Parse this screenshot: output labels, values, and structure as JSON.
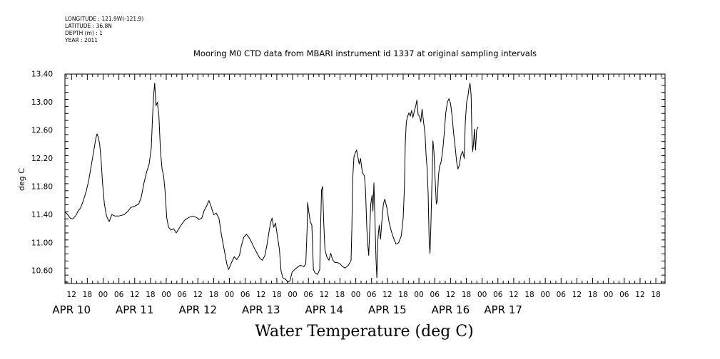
{
  "header": {
    "meta_lines": [
      "LONGITUDE : 121.9W(-121.9)",
      "LATITUDE : 36.8N",
      "DEPTH (m) : 1",
      "YEAR : 2011"
    ],
    "title": "Mooring M0 CTD data from MBARI instrument id 1337 at original sampling intervals"
  },
  "chart_data": {
    "type": "line",
    "title": "Mooring M0 CTD data from MBARI instrument id 1337 at original sampling intervals",
    "xlabel": "Water Temperature (deg C)",
    "ylabel": "deg C",
    "x_unit": "hours from APR 10 00:00, 2011",
    "xlim": [
      9.5,
      237.5
    ],
    "ylim": [
      10.42,
      13.4
    ],
    "y_ticks": [
      10.6,
      11.0,
      11.4,
      11.8,
      12.2,
      12.6,
      13.0,
      13.4
    ],
    "y_tick_labels": [
      "10.60",
      "11.00",
      "11.40",
      "11.80",
      "12.20",
      "12.60",
      "13.00",
      "13.40"
    ],
    "hour_ticks": [
      12,
      18,
      24,
      30,
      36,
      42,
      48,
      54,
      60,
      66,
      72,
      78,
      84,
      90,
      96,
      102,
      108,
      114,
      120,
      126,
      132,
      138,
      144,
      150,
      156,
      162,
      168,
      174,
      180,
      186,
      192,
      198,
      204,
      210,
      216,
      222,
      228,
      234
    ],
    "hour_tick_labels": [
      "12",
      "18",
      "00",
      "06",
      "12",
      "18",
      "00",
      "06",
      "12",
      "18",
      "00",
      "06",
      "12",
      "18",
      "00",
      "06",
      "12",
      "18",
      "00",
      "06",
      "12",
      "18",
      "00",
      "06",
      "12",
      "18",
      "00",
      "06",
      "12",
      "18",
      "00",
      "06",
      "12",
      "18",
      "00",
      "06",
      "12",
      "18"
    ],
    "day_labels": [
      {
        "x": 12,
        "label": "APR 10"
      },
      {
        "x": 36,
        "label": "APR 11"
      },
      {
        "x": 60,
        "label": "APR 12"
      },
      {
        "x": 84,
        "label": "APR 13"
      },
      {
        "x": 108,
        "label": "APR 14"
      },
      {
        "x": 132,
        "label": "APR 15"
      },
      {
        "x": 156,
        "label": "APR 16"
      },
      {
        "x": 176,
        "label": "APR 17"
      }
    ],
    "series": [
      {
        "points": [
          [
            9.6,
            11.44
          ],
          [
            10.5,
            11.4
          ],
          [
            11.5,
            11.35
          ],
          [
            12.5,
            11.34
          ],
          [
            13.5,
            11.38
          ],
          [
            14.5,
            11.45
          ],
          [
            15.5,
            11.5
          ],
          [
            16.5,
            11.6
          ],
          [
            17.5,
            11.72
          ],
          [
            18.5,
            11.88
          ],
          [
            19.5,
            12.1
          ],
          [
            20.5,
            12.32
          ],
          [
            21.2,
            12.48
          ],
          [
            21.7,
            12.55
          ],
          [
            22.2,
            12.5
          ],
          [
            22.7,
            12.4
          ],
          [
            23.2,
            12.2
          ],
          [
            23.8,
            11.85
          ],
          [
            24.5,
            11.55
          ],
          [
            25.3,
            11.38
          ],
          [
            26.3,
            11.3
          ],
          [
            27.3,
            11.4
          ],
          [
            28.5,
            11.38
          ],
          [
            30,
            11.38
          ],
          [
            32,
            11.4
          ],
          [
            33.5,
            11.45
          ],
          [
            34.5,
            11.5
          ],
          [
            36,
            11.52
          ],
          [
            37.5,
            11.55
          ],
          [
            38.5,
            11.65
          ],
          [
            39.5,
            11.85
          ],
          [
            40.5,
            12.0
          ],
          [
            41.5,
            12.12
          ],
          [
            42.3,
            12.35
          ],
          [
            42.8,
            12.8
          ],
          [
            43.2,
            13.1
          ],
          [
            43.6,
            13.27
          ],
          [
            44.1,
            12.95
          ],
          [
            44.6,
            13.0
          ],
          [
            45.2,
            12.8
          ],
          [
            45.8,
            12.3
          ],
          [
            46.4,
            12.05
          ],
          [
            47,
            11.95
          ],
          [
            47.5,
            11.75
          ],
          [
            48.2,
            11.35
          ],
          [
            48.9,
            11.22
          ],
          [
            49.8,
            11.18
          ],
          [
            50.8,
            11.2
          ],
          [
            51.8,
            11.14
          ],
          [
            52.8,
            11.2
          ],
          [
            53.8,
            11.26
          ],
          [
            55,
            11.32
          ],
          [
            56.5,
            11.36
          ],
          [
            58,
            11.38
          ],
          [
            59.5,
            11.36
          ],
          [
            60.5,
            11.33
          ],
          [
            61.5,
            11.35
          ],
          [
            62.3,
            11.45
          ],
          [
            63.3,
            11.52
          ],
          [
            64.2,
            11.6
          ],
          [
            65,
            11.52
          ],
          [
            66,
            11.4
          ],
          [
            67,
            11.42
          ],
          [
            68,
            11.35
          ],
          [
            69,
            11.1
          ],
          [
            70,
            10.9
          ],
          [
            71,
            10.7
          ],
          [
            71.7,
            10.62
          ],
          [
            72.8,
            10.72
          ],
          [
            73.8,
            10.8
          ],
          [
            74.8,
            10.76
          ],
          [
            75.8,
            10.82
          ],
          [
            76.5,
            10.95
          ],
          [
            77.5,
            11.08
          ],
          [
            78.5,
            11.12
          ],
          [
            79.5,
            11.07
          ],
          [
            80.5,
            11.0
          ],
          [
            81.5,
            10.92
          ],
          [
            82.5,
            10.85
          ],
          [
            83.5,
            10.78
          ],
          [
            84.5,
            10.75
          ],
          [
            85.5,
            10.82
          ],
          [
            86.3,
            10.98
          ],
          [
            87,
            11.15
          ],
          [
            87.6,
            11.28
          ],
          [
            88.2,
            11.35
          ],
          [
            88.8,
            11.22
          ],
          [
            89.5,
            11.28
          ],
          [
            90.3,
            11.08
          ],
          [
            91,
            10.9
          ],
          [
            91.6,
            10.6
          ],
          [
            92.3,
            10.5
          ],
          [
            93.3,
            10.48
          ],
          [
            94.3,
            10.44
          ],
          [
            95,
            10.46
          ],
          [
            95.8,
            10.58
          ],
          [
            96.8,
            10.62
          ],
          [
            97.8,
            10.65
          ],
          [
            99,
            10.68
          ],
          [
            100.3,
            10.66
          ],
          [
            101,
            10.7
          ],
          [
            101.5,
            11.2
          ],
          [
            101.7,
            11.57
          ],
          [
            102.1,
            11.45
          ],
          [
            102.7,
            11.3
          ],
          [
            103.3,
            11.25
          ],
          [
            103.6,
            10.95
          ],
          [
            103.9,
            10.62
          ],
          [
            104.5,
            10.57
          ],
          [
            105.5,
            10.55
          ],
          [
            106.3,
            10.62
          ],
          [
            106.6,
            11.2
          ],
          [
            107,
            11.75
          ],
          [
            107.4,
            11.8
          ],
          [
            107.8,
            11.3
          ],
          [
            108.3,
            10.9
          ],
          [
            109,
            10.8
          ],
          [
            109.8,
            10.75
          ],
          [
            110.5,
            10.85
          ],
          [
            111.2,
            10.76
          ],
          [
            112,
            10.72
          ],
          [
            113,
            10.72
          ],
          [
            114,
            10.7
          ],
          [
            115,
            10.66
          ],
          [
            116,
            10.64
          ],
          [
            117.2,
            10.68
          ],
          [
            118.2,
            10.75
          ],
          [
            118.5,
            11.2
          ],
          [
            118.8,
            11.9
          ],
          [
            119.3,
            12.22
          ],
          [
            119.8,
            12.28
          ],
          [
            120.3,
            12.32
          ],
          [
            120.8,
            12.22
          ],
          [
            121.3,
            12.12
          ],
          [
            121.8,
            12.2
          ],
          [
            122.5,
            12.0
          ],
          [
            123.3,
            11.95
          ],
          [
            123.7,
            11.75
          ],
          [
            124.2,
            11.2
          ],
          [
            124.6,
            10.95
          ],
          [
            124.9,
            10.82
          ],
          [
            125.2,
            11.1
          ],
          [
            125.7,
            11.55
          ],
          [
            126.2,
            11.68
          ],
          [
            126.5,
            11.45
          ],
          [
            126.9,
            11.85
          ],
          [
            127.3,
            11.3
          ],
          [
            127.7,
            10.75
          ],
          [
            128,
            10.5
          ],
          [
            128.4,
            11.05
          ],
          [
            128.9,
            11.25
          ],
          [
            129.4,
            11.05
          ],
          [
            129.9,
            11.3
          ],
          [
            130.5,
            11.55
          ],
          [
            131,
            11.62
          ],
          [
            131.8,
            11.5
          ],
          [
            132.6,
            11.3
          ],
          [
            133.6,
            11.15
          ],
          [
            134.5,
            11.05
          ],
          [
            135.3,
            10.98
          ],
          [
            136.3,
            11.0
          ],
          [
            137.3,
            11.1
          ],
          [
            138,
            11.35
          ],
          [
            138.5,
            11.8
          ],
          [
            138.8,
            12.4
          ],
          [
            139.2,
            12.72
          ],
          [
            139.7,
            12.8
          ],
          [
            140.2,
            12.85
          ],
          [
            140.7,
            12.8
          ],
          [
            141.2,
            12.88
          ],
          [
            141.7,
            12.78
          ],
          [
            142.3,
            12.88
          ],
          [
            142.8,
            12.95
          ],
          [
            143.2,
            13.03
          ],
          [
            143.7,
            12.82
          ],
          [
            144.2,
            12.8
          ],
          [
            144.7,
            12.72
          ],
          [
            145.2,
            12.9
          ],
          [
            145.8,
            12.7
          ],
          [
            146.3,
            12.55
          ],
          [
            146.7,
            12.25
          ],
          [
            147.1,
            12.05
          ],
          [
            147.5,
            11.7
          ],
          [
            147.9,
            11.0
          ],
          [
            148.2,
            10.85
          ],
          [
            148.5,
            11.2
          ],
          [
            148.9,
            11.8
          ],
          [
            149.3,
            12.45
          ],
          [
            149.7,
            12.3
          ],
          [
            150.2,
            11.85
          ],
          [
            150.6,
            11.55
          ],
          [
            151,
            11.6
          ],
          [
            151.4,
            11.95
          ],
          [
            151.8,
            12.08
          ],
          [
            152.4,
            12.15
          ],
          [
            153,
            12.3
          ],
          [
            153.6,
            12.55
          ],
          [
            154.2,
            12.85
          ],
          [
            154.8,
            13.0
          ],
          [
            155.4,
            13.05
          ],
          [
            156,
            12.98
          ],
          [
            156.6,
            12.8
          ],
          [
            157.2,
            12.55
          ],
          [
            157.8,
            12.35
          ],
          [
            158.3,
            12.15
          ],
          [
            158.8,
            12.05
          ],
          [
            159.3,
            12.1
          ],
          [
            160,
            12.25
          ],
          [
            160.6,
            12.3
          ],
          [
            161.2,
            12.2
          ],
          [
            161.6,
            12.7
          ],
          [
            162.1,
            13.0
          ],
          [
            162.6,
            13.08
          ],
          [
            163,
            13.2
          ],
          [
            163.4,
            13.27
          ],
          [
            163.8,
            13.1
          ],
          [
            164.1,
            12.55
          ],
          [
            164.4,
            12.3
          ],
          [
            164.7,
            12.4
          ],
          [
            165.1,
            12.62
          ],
          [
            165.5,
            12.32
          ],
          [
            165.9,
            12.6
          ],
          [
            166.5,
            12.65
          ]
        ]
      }
    ]
  }
}
